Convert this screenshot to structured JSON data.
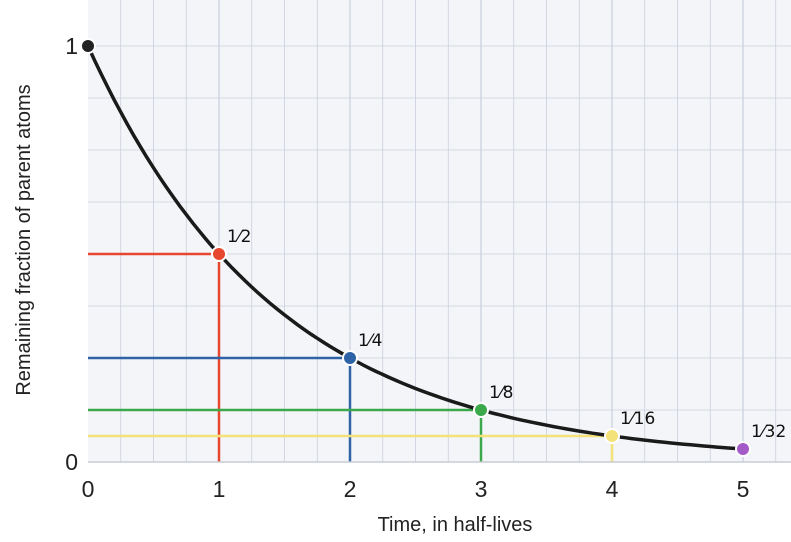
{
  "chart_data": {
    "type": "line",
    "xlabel": "Time, in half-lives",
    "ylabel": "Remaining fraction of parent atoms",
    "xlim": [
      0,
      5.3
    ],
    "ylim": [
      0,
      1
    ],
    "x_ticks": [
      "0",
      "1",
      "2",
      "3",
      "4",
      "5"
    ],
    "y_ticks": [
      "0",
      "1"
    ],
    "grid": true,
    "curve": {
      "x": [
        0,
        0.25,
        0.5,
        0.75,
        1,
        1.25,
        1.5,
        1.75,
        2,
        2.25,
        2.5,
        2.75,
        3,
        3.25,
        3.5,
        3.75,
        4,
        4.25,
        4.5,
        4.75,
        5
      ],
      "y": [
        1,
        0.841,
        0.707,
        0.595,
        0.5,
        0.42,
        0.354,
        0.297,
        0.25,
        0.21,
        0.177,
        0.149,
        0.125,
        0.105,
        0.088,
        0.074,
        0.0625,
        0.053,
        0.044,
        0.037,
        0.03125
      ]
    },
    "points": [
      {
        "x": 0,
        "y": 1,
        "label": "",
        "color": "#222222"
      },
      {
        "x": 1,
        "y": 0.5,
        "label": "1⁄2",
        "color": "#e8472f"
      },
      {
        "x": 2,
        "y": 0.25,
        "label": "1⁄4",
        "color": "#2e63a8"
      },
      {
        "x": 3,
        "y": 0.125,
        "label": "1⁄8",
        "color": "#3aa84b"
      },
      {
        "x": 4,
        "y": 0.0625,
        "label": "1⁄16",
        "color": "#f3e27a"
      },
      {
        "x": 5,
        "y": 0.03125,
        "label": "1⁄32",
        "color": "#a35bc7"
      }
    ]
  }
}
